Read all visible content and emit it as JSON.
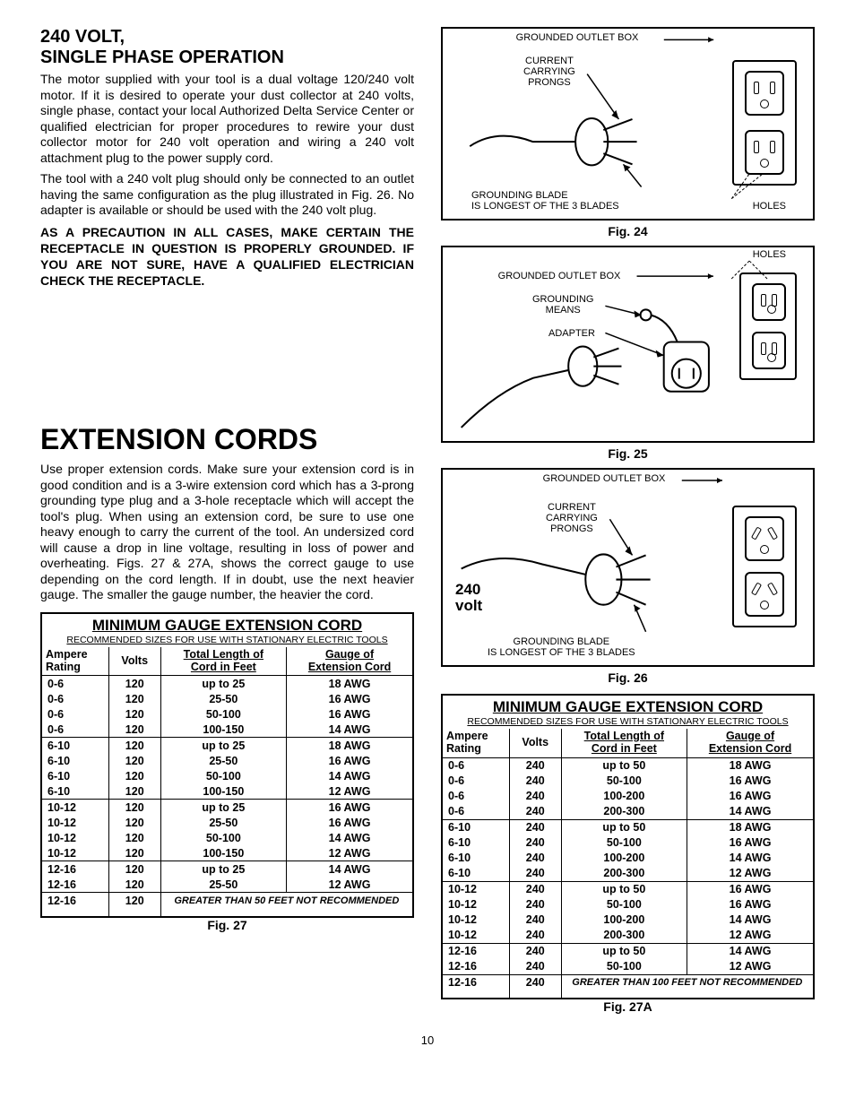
{
  "section1": {
    "title_line1": "240 VOLT,",
    "title_line2": "SINGLE PHASE OPERATION",
    "para1": "The motor supplied with your tool is a dual voltage 120/240 volt motor. If it is desired to operate your dust collector at 240 volts, single phase, contact your local Authorized Delta Service Center or qualified electrician for proper procedures to rewire your dust collector motor for 240 volt operation and wiring a 240 volt attachment plug to the power supply cord.",
    "para2": "The tool with a 240 volt plug should only be connected to an outlet having the same configuration as the plug illustrated in Fig. 26. No adapter is available or should be used with the 240 volt plug.",
    "para3_bold": "AS A PRECAUTION IN ALL CASES,   MAKE CERTAIN THE RECEPTACLE IN QUESTION IS PROPERLY GROUNDED.      IF YOU ARE NOT SURE,      HAVE A QUALIFIED ELECTRICIAN CHECK THE RECEPTACLE."
  },
  "section2": {
    "title": "EXTENSION CORDS",
    "para": "Use proper extension cords. Make sure your extension cord is in good condition and is a 3-wire extension cord which has a 3-prong grounding type plug and a 3-hole receptacle which will accept the tool's plug. When using an extension cord, be sure to use one heavy enough to carry the current of the tool. An undersized cord will cause a drop in line voltage, resulting in loss of power and overheating. Figs. 27 & 27A, shows the correct gauge to use depending on the cord length. If in doubt, use the next heavier gauge. The smaller the gauge number, the heavier the cord."
  },
  "figures": {
    "fig24": {
      "caption": "Fig. 24",
      "labels": {
        "outlet_box": "GROUNDED OUTLET BOX",
        "prongs_l1": "CURRENT",
        "prongs_l2": "CARRYING",
        "prongs_l3": "PRONGS",
        "blade_l1": "GROUNDING BLADE",
        "blade_l2": "IS LONGEST OF THE 3 BLADES",
        "holes": "HOLES"
      }
    },
    "fig25": {
      "caption": "Fig. 25",
      "labels": {
        "holes": "HOLES",
        "outlet_box": "GROUNDED OUTLET BOX",
        "grounding_l1": "GROUNDING",
        "grounding_l2": "MEANS",
        "adapter": "ADAPTER"
      }
    },
    "fig26": {
      "caption": "Fig. 26",
      "labels": {
        "outlet_box": "GROUNDED OUTLET BOX",
        "prongs_l1": "CURRENT",
        "prongs_l2": "CARRYING",
        "prongs_l3": "PRONGS",
        "blade_l1": "GROUNDING BLADE",
        "blade_l2": "IS LONGEST OF THE 3 BLADES",
        "volt_l1": "240",
        "volt_l2": "volt"
      }
    }
  },
  "tables": {
    "title": "MINIMUM GAUGE EXTENSION CORD",
    "subtitle": "RECOMMENDED SIZES FOR USE WITH STATIONARY ELECTRIC TOOLS",
    "headers": {
      "amp_l1": "Ampere",
      "amp_l2": "Rating",
      "volts": "Volts",
      "len_l1": "Total Length of",
      "len_l2": "Cord in Feet",
      "gauge_l1": "Gauge of",
      "gauge_l2": "Extension Cord"
    },
    "t120": {
      "caption": "Fig. 27",
      "volts": "120",
      "note": "GREATER THAN 50 FEET NOT RECOMMENDED",
      "groups": [
        {
          "amp": "0-6",
          "rows": [
            [
              "up to 25",
              "18 AWG"
            ],
            [
              "25-50",
              "16 AWG"
            ],
            [
              "50-100",
              "16 AWG"
            ],
            [
              "100-150",
              "14 AWG"
            ]
          ]
        },
        {
          "amp": "6-10",
          "rows": [
            [
              "up to 25",
              "18 AWG"
            ],
            [
              "25-50",
              "16 AWG"
            ],
            [
              "50-100",
              "14 AWG"
            ],
            [
              "100-150",
              "12 AWG"
            ]
          ]
        },
        {
          "amp": "10-12",
          "rows": [
            [
              "up to 25",
              "16 AWG"
            ],
            [
              "25-50",
              "16 AWG"
            ],
            [
              "50-100",
              "14 AWG"
            ],
            [
              "100-150",
              "12 AWG"
            ]
          ]
        },
        {
          "amp": "12-16",
          "rows": [
            [
              "up to 25",
              "14 AWG"
            ],
            [
              "25-50",
              "12 AWG"
            ]
          ]
        }
      ]
    },
    "t240": {
      "caption": "Fig. 27A",
      "volts": "240",
      "note": "GREATER THAN 100 FEET NOT RECOMMENDED",
      "groups": [
        {
          "amp": "0-6",
          "rows": [
            [
              "up to 50",
              "18 AWG"
            ],
            [
              "50-100",
              "16 AWG"
            ],
            [
              "100-200",
              "16 AWG"
            ],
            [
              "200-300",
              "14 AWG"
            ]
          ]
        },
        {
          "amp": "6-10",
          "rows": [
            [
              "up to 50",
              "18 AWG"
            ],
            [
              "50-100",
              "16 AWG"
            ],
            [
              "100-200",
              "14 AWG"
            ],
            [
              "200-300",
              "12 AWG"
            ]
          ]
        },
        {
          "amp": "10-12",
          "rows": [
            [
              "up to 50",
              "16 AWG"
            ],
            [
              "50-100",
              "16 AWG"
            ],
            [
              "100-200",
              "14 AWG"
            ],
            [
              "200-300",
              "12 AWG"
            ]
          ]
        },
        {
          "amp": "12-16",
          "rows": [
            [
              "up to 50",
              "14 AWG"
            ],
            [
              "50-100",
              "12 AWG"
            ]
          ]
        }
      ]
    }
  },
  "page_number": "10",
  "colors": {
    "ink": "#000000",
    "bg": "#ffffff"
  }
}
